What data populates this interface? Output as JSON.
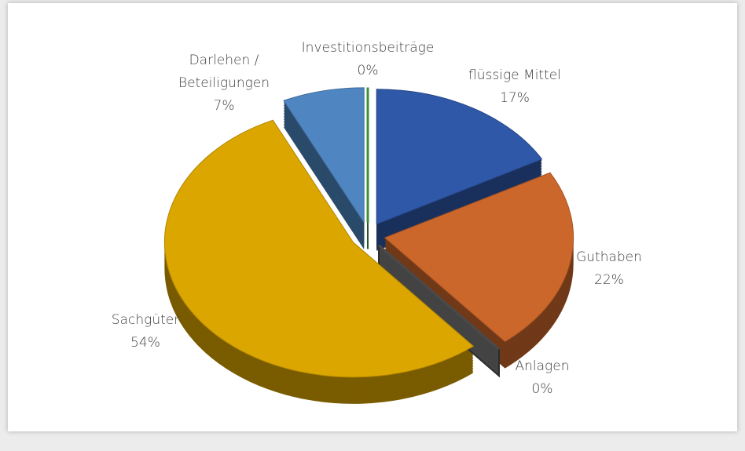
{
  "chart_data": {
    "type": "pie",
    "categories": [
      "Investitionsbeiträge",
      "flüssige Mittel",
      "Guthaben",
      "Anlagen",
      "Sachgüter",
      "Darlehen /\nBeteiligungen"
    ],
    "values": [
      0,
      17,
      22,
      0,
      54,
      7
    ],
    "value_labels": [
      "0%",
      "17%",
      "22%",
      "0%",
      "54%",
      "7%"
    ],
    "colors": [
      "#3f8f3a",
      "#2f58a8",
      "#cc672c",
      "#4a4a4a",
      "#dca600",
      "#4f86c2"
    ]
  }
}
